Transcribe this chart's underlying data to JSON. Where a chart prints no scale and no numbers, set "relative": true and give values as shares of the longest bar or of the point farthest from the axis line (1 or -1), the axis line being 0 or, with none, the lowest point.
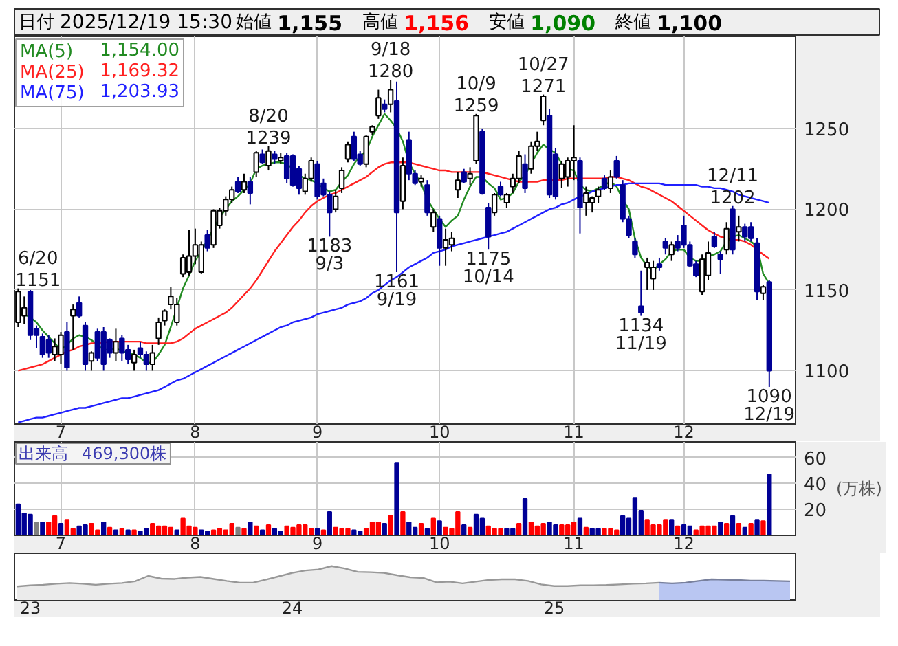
{
  "chart_data": [
    {
      "type": "other",
      "annotations": [
        "日付",
        "2025/12/19 15:30",
        "始値",
        "1,155",
        "高値",
        "1,156",
        "安値",
        "1,090",
        "終値",
        "1,100"
      ]
    },
    {
      "type": "candlestick",
      "categories": [
        null,
        null,
        null,
        null,
        null,
        null,
        null,
        "7",
        null,
        null,
        null,
        null,
        null,
        null,
        null,
        null,
        null,
        null,
        null,
        null,
        null,
        null,
        null,
        null,
        null,
        null,
        null,
        null,
        null,
        "8",
        null,
        null,
        null,
        null,
        null,
        null,
        null,
        null,
        null,
        null,
        null,
        null,
        null,
        null,
        null,
        null,
        null,
        null,
        null,
        "9",
        null,
        null,
        null,
        null,
        null,
        null,
        null,
        null,
        null,
        null,
        null,
        null,
        null,
        null,
        null,
        null,
        null,
        null,
        null,
        "10",
        null,
        null,
        null,
        null,
        null,
        null,
        null,
        null,
        null,
        null,
        null,
        null,
        null,
        null,
        null,
        null,
        null,
        null,
        null,
        null,
        null,
        "11",
        null,
        null,
        null,
        null,
        null,
        null,
        null,
        null,
        null,
        null,
        null,
        null,
        null,
        null,
        null,
        null,
        null,
        "12",
        null,
        null,
        null,
        null,
        null,
        null,
        null,
        null,
        null,
        null,
        null,
        null,
        null,
        null
      ],
      "ohlc": [
        [
          1130,
          1151,
          1127,
          1149
        ],
        [
          1134,
          1146,
          1129,
          1139
        ],
        [
          1149,
          1150,
          1119,
          1122
        ],
        [
          1126,
          1128,
          1114,
          1122
        ],
        [
          1121,
          1123,
          1108,
          1110
        ],
        [
          1119,
          1122,
          1108,
          1111
        ],
        [
          1110,
          1120,
          1106,
          1115
        ],
        [
          1110,
          1124,
          1104,
          1122
        ],
        [
          1124,
          1130,
          1100,
          1102
        ],
        [
          1134,
          1141,
          1113,
          1138
        ],
        [
          1142,
          1146,
          1133,
          1134
        ],
        [
          1128,
          1130,
          1100,
          1104
        ],
        [
          1106,
          1112,
          1100,
          1111
        ],
        [
          1124,
          1126,
          1106,
          1108
        ],
        [
          1124,
          1127,
          1100,
          1104
        ],
        [
          1119,
          1120,
          1108,
          1111
        ],
        [
          1111,
          1126,
          1106,
          1118
        ],
        [
          1120,
          1122,
          1106,
          1111
        ],
        [
          1113,
          1116,
          1104,
          1107
        ],
        [
          1105,
          1113,
          1100,
          1110
        ],
        [
          1114,
          1118,
          1108,
          1110
        ],
        [
          1110,
          1112,
          1100,
          1104
        ],
        [
          1104,
          1116,
          1100,
          1111
        ],
        [
          1120,
          1133,
          1116,
          1130
        ],
        [
          1131,
          1138,
          1128,
          1137
        ],
        [
          1141,
          1152,
          1138,
          1146
        ],
        [
          1130,
          1145,
          1128,
          1141
        ],
        [
          1160,
          1172,
          1158,
          1170
        ],
        [
          1161,
          1187,
          1159,
          1171
        ],
        [
          1171,
          1188,
          1166,
          1178
        ],
        [
          1161,
          1180,
          1160,
          1178
        ],
        [
          1184,
          1187,
          1174,
          1176
        ],
        [
          1178,
          1200,
          1176,
          1199
        ],
        [
          1190,
          1201,
          1188,
          1199
        ],
        [
          1199,
          1208,
          1196,
          1206
        ],
        [
          1206,
          1214,
          1204,
          1212
        ],
        [
          1217,
          1220,
          1210,
          1211
        ],
        [
          1212,
          1222,
          1210,
          1217
        ],
        [
          1217,
          1220,
          1203,
          1210
        ],
        [
          1223,
          1236,
          1220,
          1235
        ],
        [
          1234,
          1237,
          1228,
          1229
        ],
        [
          1227,
          1239,
          1224,
          1236
        ],
        [
          1234,
          1236,
          1228,
          1231
        ],
        [
          1230,
          1235,
          1228,
          1232
        ],
        [
          1233,
          1235,
          1216,
          1219
        ],
        [
          1233,
          1234,
          1214,
          1215
        ],
        [
          1225,
          1227,
          1209,
          1213
        ],
        [
          1211,
          1222,
          1209,
          1219
        ],
        [
          1219,
          1232,
          1217,
          1230
        ],
        [
          1228,
          1230,
          1206,
          1208
        ],
        [
          1216,
          1219,
          1208,
          1209
        ],
        [
          1209,
          1211,
          1183,
          1198
        ],
        [
          1200,
          1212,
          1198,
          1208
        ],
        [
          1213,
          1226,
          1210,
          1224
        ],
        [
          1231,
          1242,
          1229,
          1240
        ],
        [
          1245,
          1248,
          1230,
          1231
        ],
        [
          1234,
          1236,
          1227,
          1228
        ],
        [
          1228,
          1246,
          1226,
          1245
        ],
        [
          1248,
          1252,
          1246,
          1251
        ],
        [
          1258,
          1274,
          1256,
          1269
        ],
        [
          1265,
          1268,
          1260,
          1262
        ],
        [
          1265,
          1280,
          1260,
          1274
        ],
        [
          1267,
          1279,
          1161,
          1198
        ],
        [
          1205,
          1232,
          1200,
          1227
        ],
        [
          1243,
          1248,
          1218,
          1222
        ],
        [
          1222,
          1224,
          1215,
          1216
        ],
        [
          1217,
          1221,
          1214,
          1219
        ],
        [
          1215,
          1218,
          1196,
          1198
        ],
        [
          1189,
          1200,
          1186,
          1198
        ],
        [
          1194,
          1196,
          1165,
          1176
        ],
        [
          1176,
          1188,
          1165,
          1181
        ],
        [
          1178,
          1186,
          1174,
          1182
        ],
        [
          1212,
          1223,
          1207,
          1218
        ],
        [
          1223,
          1225,
          1216,
          1217
        ],
        [
          1219,
          1226,
          1215,
          1222
        ],
        [
          1230,
          1259,
          1228,
          1258
        ],
        [
          1248,
          1250,
          1209,
          1210
        ],
        [
          1201,
          1204,
          1175,
          1183
        ],
        [
          1198,
          1210,
          1196,
          1209
        ],
        [
          1214,
          1217,
          1208,
          1209
        ],
        [
          1204,
          1210,
          1201,
          1209
        ],
        [
          1214,
          1222,
          1210,
          1219
        ],
        [
          1219,
          1236,
          1216,
          1233
        ],
        [
          1228,
          1234,
          1210,
          1213
        ],
        [
          1225,
          1242,
          1222,
          1239
        ],
        [
          1239,
          1248,
          1236,
          1242
        ],
        [
          1255,
          1271,
          1252,
          1270
        ],
        [
          1258,
          1262,
          1207,
          1209
        ],
        [
          1234,
          1238,
          1206,
          1208
        ],
        [
          1219,
          1230,
          1213,
          1228
        ],
        [
          1220,
          1232,
          1214,
          1230
        ],
        [
          1230,
          1252,
          1218,
          1232
        ],
        [
          1230,
          1232,
          1185,
          1201
        ],
        [
          1204,
          1214,
          1196,
          1210
        ],
        [
          1204,
          1208,
          1198,
          1207
        ],
        [
          1208,
          1214,
          1204,
          1212
        ],
        [
          1219,
          1221,
          1212,
          1213
        ],
        [
          1213,
          1224,
          1210,
          1220
        ],
        [
          1230,
          1233,
          1219,
          1220
        ],
        [
          1215,
          1218,
          1192,
          1194
        ],
        [
          1194,
          1196,
          1182,
          1184
        ],
        [
          1180,
          1182,
          1170,
          1172
        ],
        [
          1140,
          1162,
          1134,
          1136
        ],
        [
          1164,
          1170,
          1150,
          1167
        ],
        [
          1157,
          1168,
          1150,
          1164
        ],
        [
          1166,
          1170,
          1162,
          1164
        ],
        [
          1180,
          1182,
          1172,
          1176
        ],
        [
          1172,
          1180,
          1168,
          1178
        ],
        [
          1180,
          1184,
          1174,
          1176
        ],
        [
          1190,
          1196,
          1176,
          1178
        ],
        [
          1178,
          1180,
          1164,
          1165
        ],
        [
          1166,
          1168,
          1158,
          1159
        ],
        [
          1149,
          1172,
          1147,
          1169
        ],
        [
          1159,
          1180,
          1156,
          1173
        ],
        [
          1183,
          1186,
          1176,
          1177
        ],
        [
          1172,
          1174,
          1160,
          1169
        ],
        [
          1175,
          1192,
          1172,
          1188
        ],
        [
          1200,
          1202,
          1172,
          1175
        ],
        [
          1186,
          1196,
          1180,
          1189
        ],
        [
          1189,
          1191,
          1180,
          1183
        ],
        [
          1189,
          1192,
          1180,
          1182
        ],
        [
          1179,
          1182,
          1144,
          1149
        ],
        [
          1148,
          1153,
          1144,
          1152
        ],
        [
          1155,
          1156,
          1090,
          1100
        ]
      ],
      "colors": [
        "#ffffff",
        "#ffffff",
        "#000096",
        "#000096",
        "#000096",
        "#000096",
        "#ffffff",
        "#ffffff",
        "#000096",
        "#ffffff",
        "#000096",
        "#000096",
        "#ffffff",
        "#000096",
        "#000096",
        "#000096",
        "#ffffff",
        "#000096",
        "#000096",
        "#ffffff",
        "#000096",
        "#000096",
        "#ffffff",
        "#ffffff",
        "#ffffff",
        "#ffffff",
        "#ffffff",
        "#ffffff",
        "#ffffff",
        "#ffffff",
        "#ffffff",
        "#000096",
        "#ffffff",
        "#ffffff",
        "#ffffff",
        "#ffffff",
        "#000096",
        "#ffffff",
        "#000096",
        "#ffffff",
        "#000096",
        "#ffffff",
        "#000096",
        "#ffffff",
        "#000096",
        "#000096",
        "#000096",
        "#ffffff",
        "#ffffff",
        "#000096",
        "#000096",
        "#000096",
        "#ffffff",
        "#ffffff",
        "#ffffff",
        "#000096",
        "#000096",
        "#ffffff",
        "#ffffff",
        "#ffffff",
        "#000096",
        "#ffffff",
        "#000096",
        "#ffffff",
        "#000096",
        "#000096",
        "#ffffff",
        "#000096",
        "#ffffff",
        "#000096",
        "#ffffff",
        "#ffffff",
        "#ffffff",
        "#000096",
        "#ffffff",
        "#ffffff",
        "#000096",
        "#000096",
        "#ffffff",
        "#000096",
        "#ffffff",
        "#ffffff",
        "#ffffff",
        "#000096",
        "#ffffff",
        "#ffffff",
        "#ffffff",
        "#000096",
        "#000096",
        "#ffffff",
        "#ffffff",
        "#ffffff",
        "#000096",
        "#ffffff",
        "#ffffff",
        "#ffffff",
        "#000096",
        "#ffffff",
        "#000096",
        "#000096",
        "#000096",
        "#000096",
        "#000096",
        "#ffffff",
        "#ffffff",
        "#000096",
        "#000096",
        "#ffffff",
        "#000096",
        "#000096",
        "#000096",
        "#000096",
        "#ffffff",
        "#ffffff",
        "#000096",
        "#000096",
        "#ffffff",
        "#000096",
        "#ffffff",
        "#000096",
        "#000096",
        "#000096",
        "#ffffff",
        "#000096"
      ],
      "series": [
        {
          "type": "line",
          "name": "MA(5)",
          "color": "#228b22",
          "values": [
            null,
            1135,
            1133,
            1130,
            1125,
            1121,
            1117,
            1113,
            1116,
            1120,
            1122,
            1121,
            1119,
            1116,
            1113,
            1113,
            1114,
            1112,
            1111,
            1110,
            1108,
            1105,
            1105,
            1110,
            1116,
            1127,
            1139,
            1151,
            1159,
            1168,
            1174,
            1181,
            1188,
            1195,
            1200,
            1205,
            1208,
            1212,
            1216,
            1225,
            1227,
            1228,
            1229,
            1229,
            1228,
            1225,
            1221,
            1219,
            1218,
            1216,
            1213,
            1211,
            1212,
            1217,
            1221,
            1228,
            1233,
            1236,
            1245,
            1252,
            1259,
            1255,
            1250,
            1242,
            1229,
            1222,
            1216,
            1206,
            1200,
            1194,
            1189,
            1193,
            1196,
            1206,
            1214,
            1220,
            1220,
            1216,
            1213,
            1206,
            1207,
            1210,
            1217,
            1221,
            1228,
            1235,
            1240,
            1237,
            1235,
            1228,
            1225,
            1224,
            1215,
            1212,
            1211,
            1213,
            1215,
            1217,
            1214,
            1206,
            1200,
            1182,
            1170,
            1165,
            1162,
            1166,
            1169,
            1174,
            1175,
            1175,
            1170,
            1168,
            1168,
            1171,
            1172,
            1174,
            1180,
            1183,
            1184,
            1182,
            1180,
            1177,
            1160,
            1154
          ]
        },
        {
          "type": "line",
          "name": "MA(25)",
          "color": "#ff2020",
          "values": [
            1100,
            1101,
            1102,
            1103,
            1104,
            1106,
            1108,
            1110,
            1112,
            1113,
            1115,
            1116,
            1117,
            1117,
            null,
            1118,
            1118,
            1118,
            1118,
            1118,
            1118,
            1117,
            1117,
            1117,
            1117,
            1117,
            1118,
            1120,
            1123,
            1126,
            1128,
            1130,
            1132,
            1134,
            1136,
            1139,
            1143,
            1147,
            1151,
            1156,
            1162,
            1168,
            1174,
            1179,
            1184,
            1189,
            1193,
            1198,
            1202,
            1205,
            1207,
            1209,
            1210,
            1212,
            1214,
            1216,
            1218,
            1220,
            1223,
            1226,
            1228,
            1229,
            1229,
            1229,
            1229,
            1228,
            1227,
            1226,
            1225,
            1224,
            1224,
            1223,
            1223,
            1223,
            1223,
            1223,
            1223,
            1222,
            1221,
            1220,
            1219,
            1218,
            1217,
            1217,
            1217,
            1217,
            1218,
            1218,
            1218,
            1218,
            1219,
            1219,
            1219,
            1219,
            1219,
            1219,
            1219,
            1220,
            1220,
            1219,
            1218,
            1216,
            1214,
            1213,
            1211,
            1209,
            1207,
            1205,
            1202,
            1199,
            1196,
            1193,
            1190,
            1187,
            1185,
            1183,
            1182,
            1181,
            1181,
            1180,
            1178,
            1175,
            1172,
            1169.32
          ]
        },
        {
          "type": "line",
          "name": "MA(75)",
          "color": "#2020ff",
          "values": [
            1068,
            1069,
            1070,
            1071,
            1071,
            1072,
            1073,
            1074,
            1075,
            1076,
            1077,
            1077,
            1078,
            1079,
            1080,
            1081,
            1082,
            1083,
            1083,
            1084,
            1085,
            1086,
            1087,
            1088,
            1090,
            1092,
            1094,
            1095,
            1097,
            1099,
            1101,
            1103,
            1105,
            1107,
            1109,
            1111,
            1113,
            1115,
            1117,
            1119,
            1121,
            1123,
            1125,
            1127,
            1128,
            1130,
            1131,
            1132,
            1133,
            1135,
            1136,
            1137,
            1138,
            1139,
            1141,
            1142,
            1143,
            1145,
            1148,
            1150,
            1153,
            1156,
            1158,
            1161,
            1164,
            1166,
            1168,
            1170,
            1173,
            1174,
            1175,
            1177,
            1178,
            1179,
            1180,
            1181,
            1182,
            1183,
            1184,
            1185,
            1186,
            1188,
            1190,
            1192,
            1194,
            1196,
            1198,
            1200,
            1201,
            1203,
            1204,
            1206,
            1208,
            1209,
            1211,
            1212,
            1213,
            1214,
            1215,
            1215,
            1216,
            1216,
            1216,
            1216,
            1216,
            1216,
            1215,
            1215,
            1215,
            1215,
            1215,
            1215,
            1214,
            1214,
            1213,
            1213,
            1212,
            1211,
            1209,
            1208,
            1207,
            1206,
            1205,
            1203.93
          ]
        }
      ],
      "ylim": [
        1067,
        1307
      ],
      "yticks": [
        1100,
        1150,
        1200,
        1250
      ],
      "grid": true,
      "legend": "top left",
      "annotations": [
        {
          "text": "6/20\n1151",
          "y": 1151
        },
        {
          "text": "8/20\n1239",
          "y": 1239
        },
        {
          "text": "1183\n9/3",
          "y": 1183
        },
        {
          "text": "9/18\n1280",
          "y": 1280
        },
        {
          "text": "1161\n9/19",
          "y": 1161
        },
        {
          "text": "10/9\n1259",
          "y": 1259
        },
        {
          "text": "1175\n10/14",
          "y": 1175
        },
        {
          "text": "10/27\n1271",
          "y": 1271
        },
        {
          "text": "1134\n11/19",
          "y": 1134
        },
        {
          "text": "12/11\n1202",
          "y": 1202
        },
        {
          "text": "1090\n12/19",
          "y": 1090
        },
        "1,154.00",
        "1,169.32",
        "1,203.93"
      ]
    },
    {
      "type": "bar",
      "title": "出来高",
      "ylabel": "(万株)",
      "categories": [
        null,
        null,
        null,
        null,
        null,
        null,
        null,
        "7",
        null,
        null,
        null,
        null,
        null,
        null,
        null,
        null,
        null,
        null,
        null,
        null,
        null,
        null,
        null,
        null,
        null,
        null,
        null,
        null,
        null,
        "8",
        null,
        null,
        null,
        null,
        null,
        null,
        null,
        null,
        null,
        null,
        null,
        null,
        null,
        null,
        null,
        null,
        null,
        null,
        null,
        "9",
        null,
        null,
        null,
        null,
        null,
        null,
        null,
        null,
        null,
        null,
        null,
        null,
        null,
        null,
        null,
        null,
        null,
        null,
        null,
        "10",
        null,
        null,
        null,
        null,
        null,
        null,
        null,
        null,
        null,
        null,
        null,
        null,
        null,
        null,
        null,
        null,
        null,
        null,
        null,
        null,
        null,
        "11",
        null,
        null,
        null,
        null,
        null,
        null,
        null,
        null,
        null,
        null,
        null,
        null,
        null,
        null,
        null,
        null,
        null,
        "12",
        null,
        null,
        null,
        null,
        null,
        null,
        null,
        null,
        null,
        null,
        null,
        null,
        null,
        null
      ],
      "values": [
        24,
        17,
        16,
        10,
        10,
        10,
        15,
        9,
        12,
        5,
        7,
        8,
        9,
        4,
        10,
        6,
        4,
        5,
        4,
        4,
        3,
        5,
        9,
        7,
        7,
        6,
        4,
        13,
        7,
        6,
        4,
        3,
        4,
        5,
        4,
        9,
        6,
        5,
        10,
        7,
        4,
        8,
        5,
        3,
        7,
        6,
        8,
        8,
        5,
        5,
        4,
        18,
        6,
        5,
        5,
        4,
        3,
        5,
        10,
        10,
        9,
        15,
        56,
        18,
        10,
        6,
        9,
        5,
        13,
        11,
        6,
        5,
        18,
        8,
        6,
        16,
        13,
        7,
        5,
        5,
        5,
        5,
        9,
        28,
        10,
        7,
        9,
        10,
        8,
        8,
        8,
        10,
        13,
        6,
        5,
        5,
        5,
        5,
        4,
        15,
        13,
        29,
        19,
        12,
        8,
        8,
        12,
        12,
        7,
        8,
        7,
        4,
        7,
        7,
        7,
        10,
        9,
        15,
        9,
        6,
        9,
        12,
        11,
        46.93
      ],
      "colors": [
        "#000096",
        "#000096",
        "#000096",
        "#808080",
        "#000096",
        "#ff0000",
        "#ff0000",
        "#000096",
        "#ff0000",
        "#ff0000",
        "#000096",
        "#000096",
        "#ff0000",
        "#ff0000",
        "#000096",
        "#ff0000",
        "#000096",
        "#ff0000",
        "#000096",
        "#ff0000",
        "#000096",
        "#000096",
        "#ff0000",
        "#ff0000",
        "#ff0000",
        "#ff0000",
        "#000096",
        "#ff0000",
        "#ff0000",
        "#ff0000",
        "#000096",
        "#000096",
        "#ff0000",
        "#ff0000",
        "#ff0000",
        "#ff0000",
        "#808080",
        "#ff0000",
        "#000096",
        "#ff0000",
        "#000096",
        "#ff0000",
        "#000096",
        "#000096",
        "#ff0000",
        "#ff0000",
        "#ff0000",
        "#ff0000",
        "#ff0000",
        "#000096",
        "#ff0000",
        "#000096",
        "#ff0000",
        "#ff0000",
        "#ff0000",
        "#000096",
        "#000096",
        "#ff0000",
        "#ff0000",
        "#ff0000",
        "#000096",
        "#ff0000",
        "#000096",
        "#ff0000",
        "#000096",
        "#000096",
        "#ff0000",
        "#000096",
        "#ff0000",
        "#000096",
        "#ff0000",
        "#ff0000",
        "#ff0000",
        "#000096",
        "#ff0000",
        "#000096",
        "#000096",
        "#ff0000",
        "#ff0000",
        "#ff0000",
        "#000096",
        "#000096",
        "#ff0000",
        "#000096",
        "#ff0000",
        "#ff0000",
        "#ff0000",
        "#000096",
        "#000096",
        "#ff0000",
        "#ff0000",
        "#ff0000",
        "#000096",
        "#ff0000",
        "#000096",
        "#000096",
        "#ff0000",
        "#ff0000",
        "#ff0000",
        "#000096",
        "#000096",
        "#000096",
        "#000096",
        "#ff0000",
        "#ff0000",
        "#ff0000",
        "#ff0000",
        "#000096",
        "#ff0000",
        "#000096",
        "#000096",
        "#ff0000",
        "#ff0000",
        "#ff0000",
        "#ff0000",
        "#000096",
        "#ff0000",
        "#000096",
        "#ff0000",
        "#000096",
        "#ff0000",
        "#000096",
        "#ff0000",
        "#000096"
      ],
      "ylim": [
        0,
        72
      ],
      "yticks": [
        20,
        40,
        60
      ],
      "grid": true,
      "annotations": [
        "469,300株"
      ]
    },
    {
      "type": "area",
      "relative": true,
      "categories": [
        null,
        "23",
        null,
        null,
        null,
        null,
        null,
        null,
        null,
        null,
        null,
        null,
        null,
        null,
        null,
        null,
        null,
        null,
        null,
        null,
        null,
        "24",
        null,
        null,
        null,
        null,
        null,
        null,
        null,
        null,
        null,
        null,
        null,
        null,
        null,
        null,
        null,
        null,
        null,
        null,
        null,
        "25",
        null,
        null,
        null,
        null,
        null,
        null,
        null,
        null,
        null,
        null,
        null,
        null,
        null,
        null,
        null,
        null,
        null,
        null
      ],
      "series": [
        {
          "color": "#ebebeb",
          "values": [
            0.4,
            0.43,
            0.45,
            0.48,
            0.5,
            0.48,
            0.45,
            0.48,
            0.5,
            0.55,
            0.71,
            0.63,
            0.62,
            0.66,
            0.68,
            0.62,
            0.56,
            0.51,
            0.51,
            0.6,
            0.7,
            0.8,
            0.87,
            0.9,
            1,
            0.93,
            0.83,
            0.82,
            0.8,
            0.73,
            0.67,
            0.65,
            0.52,
            0.54,
            0.49,
            0.54,
            0.59,
            0.61,
            0.61,
            0.56,
            0.46,
            0.41,
            0.41,
            0.43,
            0.43,
            0.44,
            0.46,
            0.48,
            0.49,
            0.51,
            null,
            null,
            null,
            null,
            null,
            null,
            null,
            null,
            null,
            null
          ]
        },
        {
          "color": "#b9c6f2",
          "values": [
            null,
            null,
            null,
            null,
            null,
            null,
            null,
            null,
            null,
            null,
            null,
            null,
            null,
            null,
            null,
            null,
            null,
            null,
            null,
            null,
            null,
            null,
            null,
            null,
            null,
            null,
            null,
            null,
            null,
            null,
            null,
            null,
            null,
            null,
            null,
            null,
            null,
            null,
            null,
            null,
            null,
            null,
            null,
            null,
            null,
            null,
            null,
            null,
            null,
            0.51,
            0.49,
            0.51,
            0.56,
            0.61,
            0.6,
            0.59,
            0.57,
            0.57,
            0.56,
            0.55
          ]
        }
      ]
    }
  ]
}
